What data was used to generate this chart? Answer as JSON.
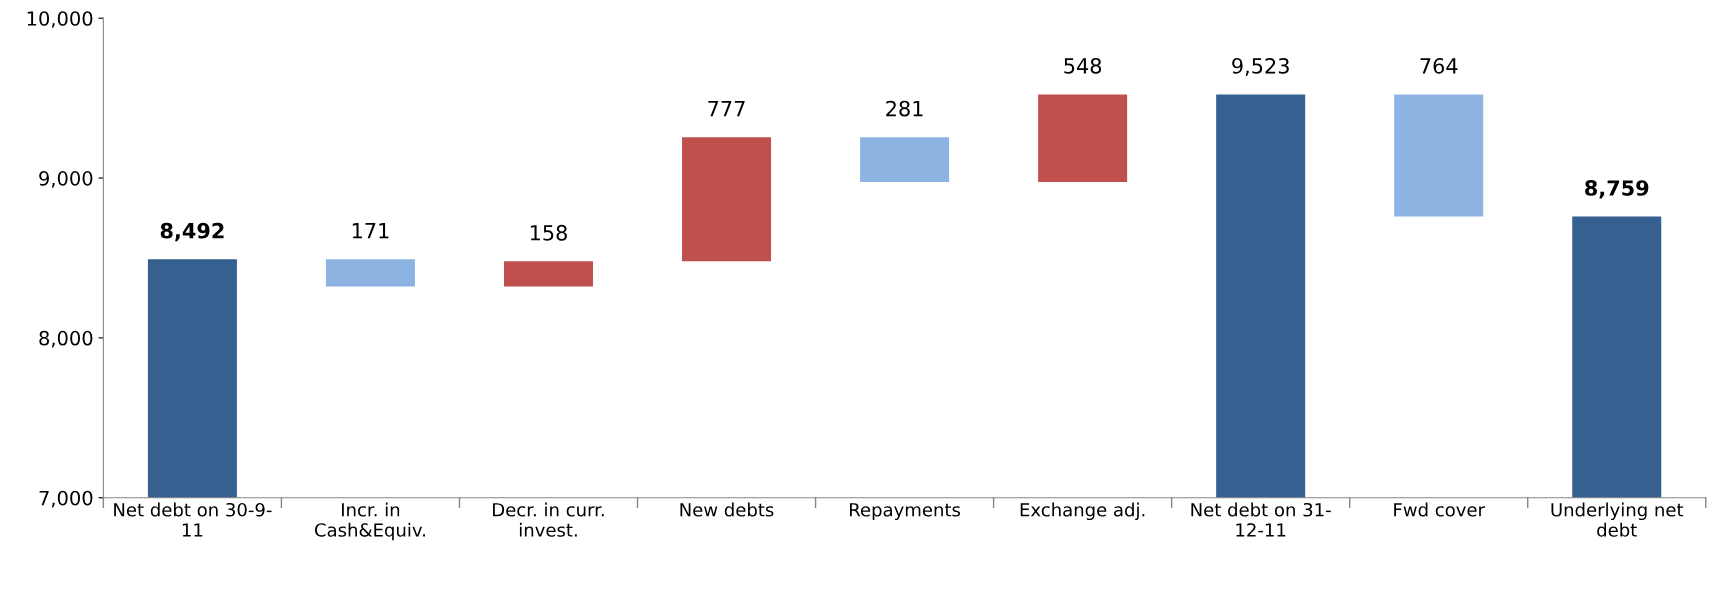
{
  "chart_data": {
    "type": "bar",
    "categories": [
      "Net debt on 30-9-\n11",
      "Incr. in\nCash&Equiv.",
      "Decr. in curr.\ninvest.",
      "New debts",
      "Repayments",
      "Exchange adj.",
      "Net debt on 31-\n12-11",
      "Fwd cover",
      "Underlying net\ndebt"
    ],
    "values": [
      8492,
      171,
      158,
      777,
      281,
      548,
      9523,
      764,
      8759
    ],
    "base": [
      0,
      8321,
      8321,
      8479,
      8975,
      8975,
      0,
      8759,
      0
    ],
    "colors": [
      "#35608f",
      "#8db3e2",
      "#c0504d",
      "#c0504d",
      "#8db3e2",
      "#c0504d",
      "#35608f",
      "#8db3e2",
      "#35608f"
    ],
    "value_labels": [
      "8,492",
      "171",
      "158",
      "777",
      "281",
      "548",
      "9,523",
      "764",
      "8,759"
    ],
    "ylim": [
      7000,
      10000
    ],
    "yticks": [
      {
        "value": 7000,
        "label": "7,000"
      },
      {
        "value": 8000,
        "label": "8,000"
      },
      {
        "value": 9000,
        "label": "9,000"
      },
      {
        "value": 10000,
        "label": "10,000"
      }
    ],
    "grid": false,
    "legend": false
  }
}
